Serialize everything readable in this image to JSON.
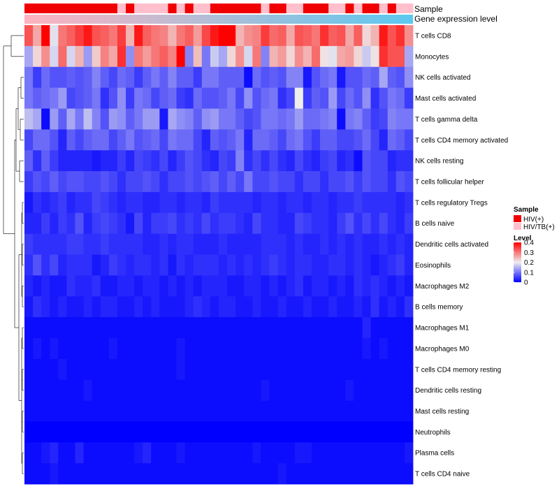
{
  "chart_data": {
    "type": "heatmap",
    "title": "",
    "rows": [
      "T cells CD8",
      "Monocytes",
      "NK cells activated",
      "Mast cells activated",
      "T cells gamma delta",
      "T cells CD4 memory activated",
      "NK cells resting",
      "T cells follicular helper",
      "T cells regulatory  Tregs",
      "B cells naive",
      "Dendritic cells activated",
      "Eosinophils",
      "Macrophages M2",
      "B cells memory",
      "Macrophages M1",
      "Macrophages M0",
      "T cells CD4 memory resting",
      "Dendritic cells resting",
      "Mast cells resting",
      "Neutrophils",
      "Plasma cells",
      "T cells CD4 naive"
    ],
    "n_samples": 46,
    "sample_groups": [
      "HIV(+)",
      "HIV(+)",
      "HIV(+)",
      "HIV(+)",
      "HIV(+)",
      "HIV(+)",
      "HIV(+)",
      "HIV(+)",
      "HIV(+)",
      "HIV(+)",
      "HIV(+)",
      "HIV/TB(+)",
      "HIV(+)",
      "HIV/TB(+)",
      "HIV/TB(+)",
      "HIV/TB(+)",
      "HIV/TB(+)",
      "HIV(+)",
      "HIV/TB(+)",
      "HIV(+)",
      "HIV/TB(+)",
      "HIV/TB(+)",
      "HIV(+)",
      "HIV(+)",
      "HIV(+)",
      "HIV(+)",
      "HIV(+)",
      "HIV(+)",
      "HIV/TB(+)",
      "HIV(+)",
      "HIV(+)",
      "HIV/TB(+)",
      "HIV/TB(+)",
      "HIV(+)",
      "HIV(+)",
      "HIV(+)",
      "HIV/TB(+)",
      "HIV/TB(+)",
      "HIV(+)",
      "HIV/TB(+)",
      "HIV(+)",
      "HIV(+)",
      "HIV/TB(+)",
      "HIV(+)",
      "HIV/TB(+)",
      "HIV/TB(+)"
    ],
    "expression_level_min": 0.0,
    "expression_level_max": 1.0,
    "values": [
      [
        0.33,
        0.26,
        0.4,
        0.19,
        0.3,
        0.32,
        0.35,
        0.38,
        0.33,
        0.32,
        0.3,
        0.35,
        0.25,
        0.38,
        0.32,
        0.3,
        0.29,
        0.25,
        0.3,
        0.32,
        0.27,
        0.34,
        0.38,
        0.4,
        0.4,
        0.25,
        0.28,
        0.29,
        0.35,
        0.31,
        0.32,
        0.26,
        0.33,
        0.32,
        0.3,
        0.36,
        0.32,
        0.33,
        0.26,
        0.32,
        0.22,
        0.25,
        0.38,
        0.33,
        0.36,
        0.28
      ],
      [
        0.14,
        0.22,
        0.28,
        0.18,
        0.31,
        0.18,
        0.25,
        0.13,
        0.23,
        0.29,
        0.26,
        0.36,
        0.12,
        0.3,
        0.27,
        0.3,
        0.32,
        0.29,
        0.4,
        0.11,
        0.24,
        0.1,
        0.17,
        0.14,
        0.22,
        0.28,
        0.18,
        0.3,
        0.11,
        0.25,
        0.27,
        0.22,
        0.28,
        0.25,
        0.31,
        0.21,
        0.19,
        0.26,
        0.27,
        0.22,
        0.17,
        0.21,
        0.36,
        0.33,
        0.33,
        0.14
      ],
      [
        0.1,
        0.05,
        0.09,
        0.07,
        0.07,
        0.08,
        0.07,
        0.08,
        0.11,
        0.08,
        0.06,
        0.09,
        0.08,
        0.05,
        0.08,
        0.1,
        0.08,
        0.11,
        0.08,
        0.08,
        0.05,
        0.1,
        0.1,
        0.08,
        0.08,
        0.08,
        0.01,
        0.09,
        0.07,
        0.08,
        0.07,
        0.11,
        0.11,
        0.02,
        0.07,
        0.09,
        0.1,
        0.02,
        0.07,
        0.07,
        0.09,
        0.08,
        0.14,
        0.08,
        0.07,
        0.12
      ],
      [
        0.1,
        0.08,
        0.09,
        0.1,
        0.13,
        0.06,
        0.07,
        0.08,
        0.1,
        0.04,
        0.07,
        0.12,
        0.05,
        0.1,
        0.09,
        0.06,
        0.08,
        0.09,
        0.05,
        0.04,
        0.09,
        0.07,
        0.07,
        0.08,
        0.1,
        0.06,
        0.12,
        0.07,
        0.09,
        0.1,
        0.04,
        0.06,
        0.2,
        0.05,
        0.08,
        0.07,
        0.13,
        0.06,
        0.09,
        0.07,
        0.12,
        0.04,
        0.07,
        0.1,
        0.09,
        0.05
      ],
      [
        0.16,
        0.14,
        0.01,
        0.13,
        0.08,
        0.14,
        0.1,
        0.16,
        0.11,
        0.07,
        0.13,
        0.12,
        0.08,
        0.1,
        0.13,
        0.13,
        0.02,
        0.14,
        0.12,
        0.11,
        0.08,
        0.12,
        0.13,
        0.1,
        0.1,
        0.08,
        0.06,
        0.07,
        0.1,
        0.1,
        0.09,
        0.1,
        0.13,
        0.09,
        0.09,
        0.1,
        0.11,
        0.01,
        0.1,
        0.11,
        0.08,
        0.05,
        0.06,
        0.11,
        0.1,
        0.1
      ],
      [
        0.06,
        0.09,
        0.09,
        0.07,
        0.03,
        0.08,
        0.06,
        0.08,
        0.09,
        0.09,
        0.06,
        0.08,
        0.1,
        0.07,
        0.08,
        0.09,
        0.06,
        0.1,
        0.09,
        0.09,
        0.06,
        0.03,
        0.08,
        0.07,
        0.08,
        0.1,
        0.03,
        0.09,
        0.09,
        0.08,
        0.06,
        0.09,
        0.1,
        0.07,
        0.05,
        0.08,
        0.08,
        0.06,
        0.06,
        0.07,
        0.09,
        0.06,
        0.03,
        0.09,
        0.08,
        0.06
      ],
      [
        0.08,
        0.04,
        0.08,
        0.05,
        0.03,
        0.03,
        0.03,
        0.03,
        0.02,
        0.03,
        0.03,
        0.05,
        0.03,
        0.06,
        0.05,
        0.04,
        0.06,
        0.03,
        0.05,
        0.07,
        0.06,
        0.04,
        0.03,
        0.06,
        0.05,
        0.11,
        0.04,
        0.06,
        0.04,
        0.06,
        0.04,
        0.03,
        0.06,
        0.04,
        0.03,
        0.05,
        0.06,
        0.03,
        0.04,
        0.01,
        0.07,
        0.06,
        0.06,
        0.03,
        0.04,
        0.04
      ],
      [
        0.05,
        0.07,
        0.06,
        0.08,
        0.06,
        0.07,
        0.07,
        0.06,
        0.06,
        0.07,
        0.06,
        0.04,
        0.06,
        0.06,
        0.07,
        0.06,
        0.04,
        0.06,
        0.06,
        0.07,
        0.06,
        0.07,
        0.08,
        0.06,
        0.08,
        0.06,
        0.1,
        0.06,
        0.06,
        0.07,
        0.06,
        0.06,
        0.04,
        0.06,
        0.06,
        0.04,
        0.06,
        0.06,
        0.07,
        0.05,
        0.07,
        0.06,
        0.06,
        0.04,
        0.07,
        0.06
      ],
      [
        0.02,
        0.04,
        0.03,
        0.04,
        0.05,
        0.03,
        0.04,
        0.04,
        0.06,
        0.05,
        0.04,
        0.03,
        0.04,
        0.04,
        0.03,
        0.03,
        0.04,
        0.04,
        0.03,
        0.04,
        0.04,
        0.03,
        0.05,
        0.04,
        0.04,
        0.04,
        0.04,
        0.03,
        0.04,
        0.04,
        0.03,
        0.04,
        0.04,
        0.03,
        0.04,
        0.04,
        0.03,
        0.04,
        0.04,
        0.05,
        0.04,
        0.04,
        0.04,
        0.04,
        0.03,
        0.04
      ],
      [
        0.03,
        0.03,
        0.05,
        0.03,
        0.05,
        0.04,
        0.07,
        0.03,
        0.05,
        0.06,
        0.05,
        0.04,
        0.02,
        0.06,
        0.03,
        0.05,
        0.05,
        0.06,
        0.04,
        0.05,
        0.04,
        0.06,
        0.04,
        0.05,
        0.05,
        0.04,
        0.03,
        0.06,
        0.04,
        0.04,
        0.03,
        0.03,
        0.06,
        0.05,
        0.04,
        0.04,
        0.03,
        0.05,
        0.07,
        0.04,
        0.06,
        0.04,
        0.06,
        0.04,
        0.03,
        0.05
      ],
      [
        0.05,
        0.04,
        0.04,
        0.04,
        0.04,
        0.05,
        0.05,
        0.04,
        0.04,
        0.05,
        0.04,
        0.04,
        0.04,
        0.04,
        0.03,
        0.03,
        0.04,
        0.03,
        0.04,
        0.04,
        0.03,
        0.03,
        0.03,
        0.04,
        0.03,
        0.03,
        0.03,
        0.03,
        0.04,
        0.04,
        0.04,
        0.03,
        0.04,
        0.03,
        0.03,
        0.04,
        0.03,
        0.04,
        0.03,
        0.04,
        0.03,
        0.03,
        0.04,
        0.03,
        0.04,
        0.03
      ],
      [
        0.04,
        0.07,
        0.04,
        0.06,
        0.03,
        0.04,
        0.04,
        0.04,
        0.02,
        0.03,
        0.05,
        0.04,
        0.03,
        0.04,
        0.04,
        0.03,
        0.04,
        0.02,
        0.04,
        0.03,
        0.04,
        0.04,
        0.04,
        0.03,
        0.04,
        0.03,
        0.04,
        0.03,
        0.04,
        0.05,
        0.04,
        0.03,
        0.04,
        0.04,
        0.03,
        0.03,
        0.04,
        0.04,
        0.03,
        0.04,
        0.03,
        0.02,
        0.03,
        0.04,
        0.05,
        0.03
      ],
      [
        0.03,
        0.02,
        0.03,
        0.02,
        0.02,
        0.04,
        0.03,
        0.03,
        0.04,
        0.02,
        0.02,
        0.03,
        0.03,
        0.02,
        0.03,
        0.03,
        0.02,
        0.03,
        0.02,
        0.03,
        0.02,
        0.03,
        0.03,
        0.03,
        0.02,
        0.02,
        0.03,
        0.03,
        0.02,
        0.03,
        0.02,
        0.03,
        0.04,
        0.02,
        0.03,
        0.03,
        0.02,
        0.03,
        0.02,
        0.04,
        0.03,
        0.04,
        0.03,
        0.02,
        0.03,
        0.02
      ],
      [
        0.02,
        0.04,
        0.03,
        0.02,
        0.03,
        0.02,
        0.02,
        0.03,
        0.02,
        0.03,
        0.03,
        0.02,
        0.02,
        0.03,
        0.02,
        0.03,
        0.02,
        0.02,
        0.02,
        0.03,
        0.04,
        0.03,
        0.02,
        0.03,
        0.03,
        0.02,
        0.02,
        0.03,
        0.02,
        0.02,
        0.03,
        0.02,
        0.02,
        0.03,
        0.02,
        0.02,
        0.03,
        0.02,
        0.02,
        0.03,
        0.02,
        0.04,
        0.02,
        0.03,
        0.02,
        0.04
      ],
      [
        0.01,
        0.01,
        0.01,
        0.01,
        0.01,
        0.01,
        0.01,
        0.01,
        0.01,
        0.01,
        0.01,
        0.01,
        0.01,
        0.01,
        0.01,
        0.01,
        0.01,
        0.01,
        0.01,
        0.01,
        0.01,
        0.01,
        0.01,
        0.01,
        0.01,
        0.01,
        0.01,
        0.01,
        0.01,
        0.01,
        0.01,
        0.01,
        0.01,
        0.01,
        0.01,
        0.01,
        0.01,
        0.01,
        0.01,
        0.01,
        0.03,
        0.01,
        0.01,
        0.01,
        0.01,
        0.01
      ],
      [
        0.01,
        0.02,
        0.01,
        0.02,
        0.01,
        0.01,
        0.01,
        0.01,
        0.01,
        0.01,
        0.02,
        0.01,
        0.01,
        0.01,
        0.01,
        0.01,
        0.01,
        0.01,
        0.02,
        0.01,
        0.01,
        0.01,
        0.01,
        0.01,
        0.01,
        0.01,
        0.01,
        0.01,
        0.01,
        0.01,
        0.01,
        0.01,
        0.01,
        0.01,
        0.01,
        0.01,
        0.01,
        0.01,
        0.01,
        0.01,
        0.02,
        0.01,
        0.02,
        0.01,
        0.01,
        0.01
      ],
      [
        0.01,
        0.01,
        0.01,
        0.01,
        0.02,
        0.01,
        0.01,
        0.01,
        0.01,
        0.01,
        0.01,
        0.01,
        0.01,
        0.01,
        0.01,
        0.01,
        0.01,
        0.01,
        0.02,
        0.01,
        0.01,
        0.01,
        0.01,
        0.01,
        0.01,
        0.01,
        0.01,
        0.01,
        0.01,
        0.01,
        0.01,
        0.01,
        0.01,
        0.01,
        0.01,
        0.01,
        0.01,
        0.01,
        0.01,
        0.01,
        0.01,
        0.01,
        0.01,
        0.01,
        0.01,
        0.01
      ],
      [
        0.01,
        0.01,
        0.01,
        0.01,
        0.01,
        0.01,
        0.01,
        0.02,
        0.01,
        0.01,
        0.01,
        0.01,
        0.01,
        0.01,
        0.01,
        0.01,
        0.01,
        0.01,
        0.01,
        0.01,
        0.01,
        0.01,
        0.01,
        0.01,
        0.01,
        0.01,
        0.01,
        0.01,
        0.02,
        0.01,
        0.01,
        0.01,
        0.01,
        0.01,
        0.01,
        0.01,
        0.01,
        0.01,
        0.02,
        0.01,
        0.01,
        0.01,
        0.01,
        0.01,
        0.01,
        0.01
      ],
      [
        0.01,
        0.01,
        0.01,
        0.01,
        0.01,
        0.01,
        0.01,
        0.01,
        0.01,
        0.01,
        0.01,
        0.01,
        0.01,
        0.01,
        0.01,
        0.01,
        0.01,
        0.01,
        0.01,
        0.01,
        0.01,
        0.01,
        0.01,
        0.01,
        0.01,
        0.01,
        0.01,
        0.01,
        0.01,
        0.01,
        0.01,
        0.01,
        0.01,
        0.01,
        0.01,
        0.01,
        0.01,
        0.01,
        0.01,
        0.01,
        0.01,
        0.01,
        0.01,
        0.01,
        0.01,
        0.01
      ],
      [
        0.0,
        0.0,
        0.0,
        0.0,
        0.0,
        0.0,
        0.0,
        0.0,
        0.0,
        0.0,
        0.0,
        0.0,
        0.0,
        0.0,
        0.0,
        0.0,
        0.0,
        0.0,
        0.0,
        0.0,
        0.0,
        0.0,
        0.0,
        0.0,
        0.0,
        0.0,
        0.0,
        0.0,
        0.0,
        0.0,
        0.0,
        0.0,
        0.0,
        0.0,
        0.0,
        0.0,
        0.0,
        0.0,
        0.0,
        0.0,
        0.0,
        0.0,
        0.0,
        0.0,
        0.0,
        0.0
      ],
      [
        0.01,
        0.01,
        0.02,
        0.03,
        0.01,
        0.01,
        0.03,
        0.01,
        0.01,
        0.01,
        0.01,
        0.01,
        0.01,
        0.02,
        0.03,
        0.01,
        0.01,
        0.01,
        0.02,
        0.01,
        0.01,
        0.01,
        0.01,
        0.01,
        0.01,
        0.01,
        0.01,
        0.02,
        0.01,
        0.01,
        0.01,
        0.01,
        0.02,
        0.02,
        0.01,
        0.01,
        0.01,
        0.01,
        0.01,
        0.01,
        0.01,
        0.01,
        0.01,
        0.01,
        0.01,
        0.02
      ],
      [
        0.01,
        0.01,
        0.01,
        0.02,
        0.01,
        0.01,
        0.01,
        0.01,
        0.01,
        0.01,
        0.01,
        0.01,
        0.01,
        0.01,
        0.01,
        0.01,
        0.01,
        0.01,
        0.01,
        0.01,
        0.01,
        0.01,
        0.01,
        0.01,
        0.01,
        0.01,
        0.01,
        0.01,
        0.01,
        0.01,
        0.02,
        0.01,
        0.01,
        0.01,
        0.01,
        0.01,
        0.01,
        0.01,
        0.01,
        0.01,
        0.01,
        0.01,
        0.01,
        0.01,
        0.01,
        0.01
      ]
    ],
    "annotations": [
      {
        "label": "Sample"
      },
      {
        "label": "Gene expression level"
      }
    ],
    "legend_sample": {
      "title": "Sample",
      "entries": [
        {
          "label": "HIV(+)",
          "color": "#f00000"
        },
        {
          "label": "HIV/TB(+)",
          "color": "#ffbfcc"
        }
      ]
    },
    "legend_level": {
      "title": "Level",
      "ticks": [
        0.4,
        0.3,
        0.2,
        0.1,
        0
      ],
      "tick_labels": [
        "0.4",
        "0.3",
        "0.2",
        "0.1",
        "0"
      ],
      "range": [
        0,
        0.4
      ],
      "colors": {
        "low": "#0000ff",
        "mid": "#eeeeee",
        "high": "#ff0000"
      }
    },
    "gradient_colors": {
      "low": "#ffb3bf",
      "high": "#5bc8f0"
    }
  }
}
